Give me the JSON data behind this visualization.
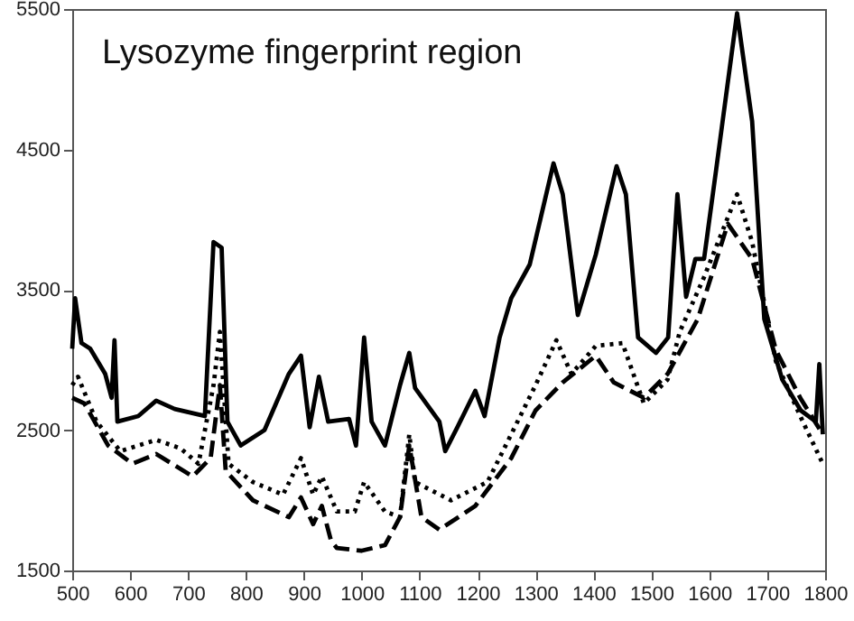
{
  "chart_data": {
    "type": "line",
    "title": "Lysozyme fingerprint region",
    "xlim": [
      500,
      1800
    ],
    "xticks": [
      500,
      600,
      700,
      800,
      900,
      1000,
      1100,
      1200,
      1300,
      1400,
      1500,
      1600,
      1700,
      1800
    ],
    "ylim": [
      1500,
      5500
    ],
    "yticks": [
      1500,
      2500,
      3500,
      4500,
      5500
    ],
    "grid": false,
    "legend": false,
    "marker": "none",
    "series": [
      {
        "color": "#000000",
        "line_style": "solid",
        "x": [
          500,
          505,
          516,
          531,
          557,
          568,
          573,
          578,
          614,
          645,
          677,
          729,
          744,
          758,
          768,
          791,
          832,
          874,
          895,
          910,
          926,
          942,
          978,
          990,
          1004,
          1017,
          1040,
          1066,
          1082,
          1092,
          1134,
          1144,
          1165,
          1196,
          1212,
          1238,
          1258,
          1290,
          1331,
          1347,
          1373,
          1404,
          1440,
          1456,
          1477,
          1508,
          1529,
          1545,
          1560,
          1576,
          1591,
          1612,
          1648,
          1674,
          1695,
          1726,
          1758,
          1784,
          1790,
          1796
        ],
        "values": [
          3080,
          3440,
          3120,
          3080,
          2900,
          2730,
          3140,
          2560,
          2600,
          2710,
          2650,
          2600,
          3840,
          3800,
          2560,
          2390,
          2500,
          2900,
          3030,
          2520,
          2880,
          2560,
          2580,
          2390,
          3160,
          2560,
          2390,
          2820,
          3050,
          2800,
          2560,
          2350,
          2520,
          2780,
          2600,
          3160,
          3440,
          3680,
          4400,
          4180,
          3320,
          3750,
          4380,
          4180,
          3160,
          3050,
          3160,
          4180,
          3450,
          3720,
          3720,
          4360,
          5470,
          4700,
          3290,
          2860,
          2640,
          2560,
          2970,
          2470
        ]
      },
      {
        "color": "#000000",
        "line_style": "dotted",
        "x": [
          500,
          510,
          542,
          583,
          645,
          687,
          718,
          744,
          755,
          770,
          812,
          864,
          895,
          916,
          931,
          957,
          988,
          1004,
          1040,
          1066,
          1082,
          1092,
          1154,
          1217,
          1258,
          1300,
          1336,
          1362,
          1404,
          1450,
          1487,
          1528,
          1549,
          1591,
          1648,
          1674,
          1715,
          1757,
          1796
        ],
        "values": [
          2820,
          2880,
          2560,
          2350,
          2430,
          2370,
          2260,
          2820,
          3200,
          2260,
          2130,
          2040,
          2300,
          2040,
          2170,
          1920,
          1920,
          2130,
          1920,
          1880,
          2470,
          2130,
          2000,
          2130,
          2470,
          2820,
          3140,
          2900,
          3100,
          3120,
          2690,
          2860,
          3200,
          3590,
          4180,
          3840,
          2990,
          2600,
          2260
        ]
      },
      {
        "color": "#000000",
        "line_style": "dashed",
        "x": [
          500,
          521,
          562,
          604,
          645,
          708,
          739,
          755,
          765,
          812,
          874,
          895,
          916,
          931,
          947,
          957,
          999,
          1040,
          1066,
          1082,
          1103,
          1134,
          1196,
          1258,
          1300,
          1347,
          1404,
          1435,
          1487,
          1528,
          1580,
          1632,
          1674,
          1715,
          1757,
          1796
        ],
        "values": [
          2730,
          2690,
          2390,
          2260,
          2330,
          2170,
          2300,
          2820,
          2210,
          2000,
          1880,
          2020,
          1830,
          1960,
          1710,
          1660,
          1640,
          1680,
          1880,
          2390,
          1880,
          1790,
          1960,
          2300,
          2640,
          2840,
          3030,
          2840,
          2730,
          2900,
          3290,
          3970,
          3720,
          3070,
          2730,
          2470
        ]
      }
    ]
  }
}
